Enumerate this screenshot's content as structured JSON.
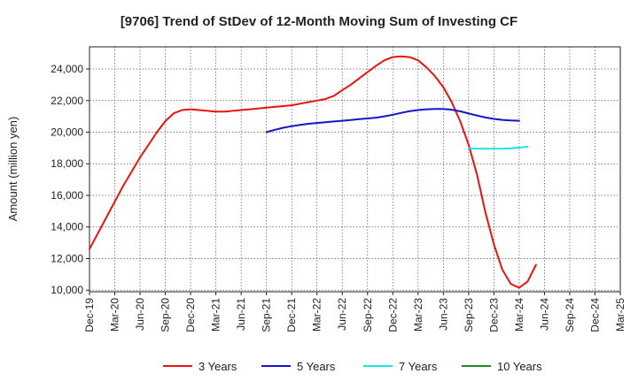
{
  "chart_data": {
    "type": "line",
    "title": "[9706]  Trend of StDev of 12-Month Moving Sum of Investing CF",
    "xlabel": "",
    "ylabel": "Amount (million yen)",
    "x_ticks": [
      "Dec-19",
      "Mar-20",
      "Jun-20",
      "Sep-20",
      "Dec-20",
      "Mar-21",
      "Jun-21",
      "Sep-21",
      "Dec-21",
      "Mar-22",
      "Jun-22",
      "Sep-22",
      "Dec-22",
      "Mar-23",
      "Jun-23",
      "Sep-23",
      "Dec-23",
      "Mar-24",
      "Jun-24",
      "Sep-24",
      "Dec-24",
      "Mar-25"
    ],
    "y_ticks": [
      "10,000",
      "12,000",
      "14,000",
      "16,000",
      "18,000",
      "20,000",
      "22,000",
      "24,000"
    ],
    "ylim": [
      9900,
      25400
    ],
    "grid": true,
    "legend_position": "bottom",
    "series": [
      {
        "name": "3 Years",
        "color": "#e8130f",
        "values": [
          12600,
          13600,
          14600,
          15600,
          16600,
          17500,
          18400,
          19200,
          20000,
          20700,
          21200,
          21400,
          21450,
          21400,
          21350,
          21300,
          21300,
          21350,
          21400,
          21450,
          21500,
          21550,
          21600,
          21650,
          21700,
          21800,
          21900,
          22000,
          22100,
          22300,
          22650,
          23000,
          23400,
          23800,
          24200,
          24550,
          24750,
          24800,
          24750,
          24550,
          24100,
          23550,
          22850,
          21900,
          20700,
          19200,
          17300,
          14900,
          12900,
          11300,
          10400,
          10150,
          10550,
          11600
        ]
      },
      {
        "name": "5 Years",
        "color": "#1414c8",
        "values": [
          null,
          null,
          null,
          null,
          null,
          null,
          null,
          null,
          null,
          null,
          null,
          null,
          null,
          null,
          null,
          null,
          null,
          null,
          null,
          null,
          null,
          20000,
          20150,
          20280,
          20380,
          20460,
          20530,
          20580,
          20630,
          20680,
          20720,
          20770,
          20820,
          20870,
          20920,
          21000,
          21100,
          21220,
          21330,
          21400,
          21450,
          21470,
          21470,
          21420,
          21320,
          21180,
          21050,
          20930,
          20840,
          20780,
          20740,
          20720
        ]
      },
      {
        "name": "7 Years",
        "color": "#19e6e6",
        "values": [
          null,
          null,
          null,
          null,
          null,
          null,
          null,
          null,
          null,
          null,
          null,
          null,
          null,
          null,
          null,
          null,
          null,
          null,
          null,
          null,
          null,
          null,
          null,
          null,
          null,
          null,
          null,
          null,
          null,
          null,
          null,
          null,
          null,
          null,
          null,
          null,
          null,
          null,
          null,
          null,
          null,
          null,
          null,
          null,
          null,
          18980,
          18960,
          18950,
          18950,
          18960,
          18980,
          19020,
          19080
        ]
      },
      {
        "name": "10 Years",
        "color": "#1e8c1e",
        "values": []
      }
    ]
  }
}
